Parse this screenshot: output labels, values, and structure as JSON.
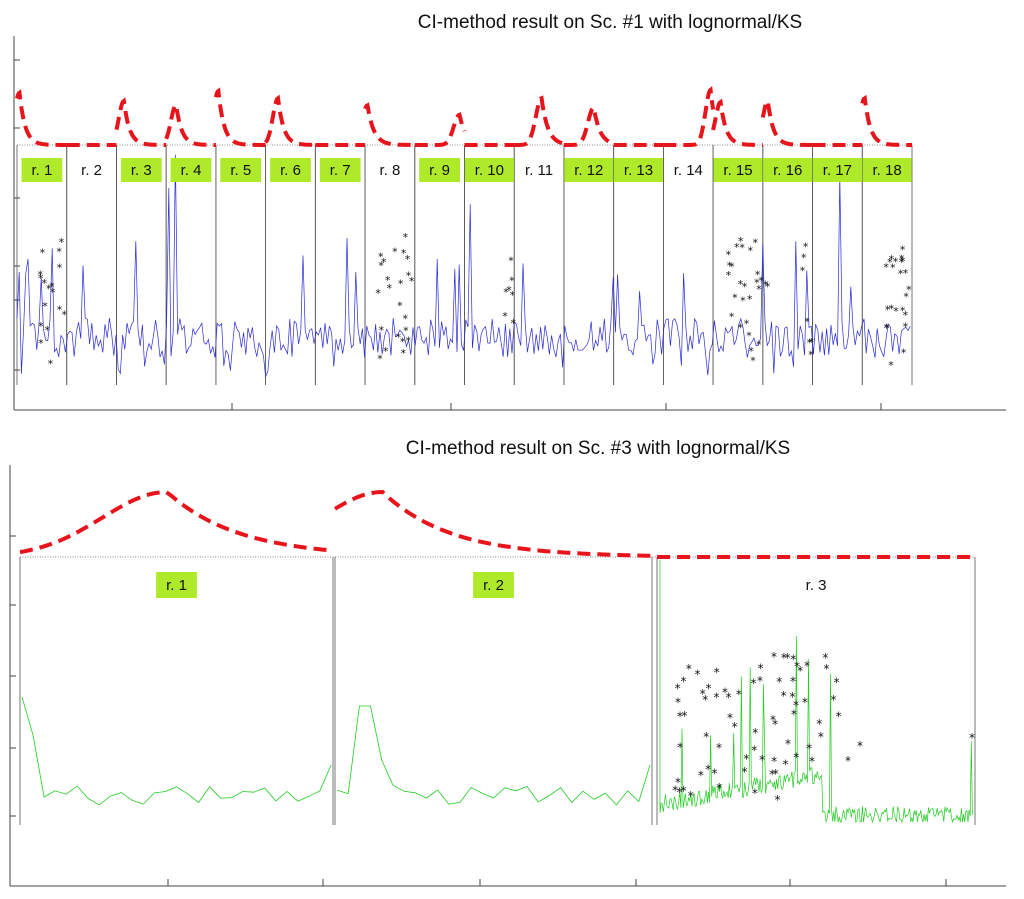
{
  "chart_data": [
    {
      "type": "line",
      "title": "CI-method result on Sc. #1 with lognormal/KS",
      "xlabel": "",
      "ylabel": "",
      "grid": false,
      "n_regions": 18,
      "regions": [
        {
          "label": "r. 1",
          "highlighted": true,
          "peak_pos": 0.05,
          "peak_height": 0.95,
          "peak_width": 0.16
        },
        {
          "label": "r. 2",
          "highlighted": false,
          "peak_pos": null,
          "peak_height": 0,
          "peak_width": 0
        },
        {
          "label": "r. 3",
          "highlighted": true,
          "peak_pos": 0.15,
          "peak_height": 0.8,
          "peak_width": 0.16
        },
        {
          "label": "r. 4",
          "highlighted": true,
          "peak_pos": 0.2,
          "peak_height": 0.73,
          "peak_width": 0.16
        },
        {
          "label": "r. 5",
          "highlighted": true,
          "peak_pos": 0.05,
          "peak_height": 0.98,
          "peak_width": 0.16
        },
        {
          "label": "r. 6",
          "highlighted": true,
          "peak_pos": 0.25,
          "peak_height": 0.85,
          "peak_width": 0.16
        },
        {
          "label": "r. 7",
          "highlighted": true,
          "peak_pos": null,
          "peak_height": 0,
          "peak_width": 0
        },
        {
          "label": "r. 8",
          "highlighted": false,
          "peak_pos": 0.05,
          "peak_height": 0.72,
          "peak_width": 0.18
        },
        {
          "label": "r. 9",
          "highlighted": true,
          "peak_pos": 0.9,
          "peak_height": 0.55,
          "peak_width": 0.18
        },
        {
          "label": "r. 10",
          "highlighted": true,
          "peak_pos": null,
          "peak_height": 0,
          "peak_width": 0
        },
        {
          "label": "r. 11",
          "highlighted": false,
          "peak_pos": 0.55,
          "peak_height": 0.85,
          "peak_width": 0.18
        },
        {
          "label": "r. 12",
          "highlighted": true,
          "peak_pos": 0.6,
          "peak_height": 0.68,
          "peak_width": 0.18
        },
        {
          "label": "r. 13",
          "highlighted": true,
          "peak_pos": null,
          "peak_height": 0,
          "peak_width": 0
        },
        {
          "label": "r. 14",
          "highlighted": false,
          "peak_pos": 0.95,
          "peak_height": 1.0,
          "peak_width": 0.16
        },
        {
          "label": "r. 15",
          "highlighted": true,
          "peak_pos": 0.15,
          "peak_height": 0.78,
          "peak_width": 0.16
        },
        {
          "label": "r. 16",
          "highlighted": true,
          "peak_pos": 0.1,
          "peak_height": 0.8,
          "peak_width": 0.16
        },
        {
          "label": "r. 17",
          "highlighted": true,
          "peak_pos": null,
          "peak_height": 0,
          "peak_width": 0
        },
        {
          "label": "r. 18",
          "highlighted": true,
          "peak_pos": 0.05,
          "peak_height": 0.85,
          "peak_width": 0.16
        }
      ],
      "colors": {
        "signal": "#2b2bd8",
        "pdf": "#e8141b",
        "highlight": "#aeea2a",
        "marker": "#111111",
        "boundary": "#555555"
      }
    },
    {
      "type": "line",
      "title": "CI-method result on Sc. #3 with lognormal/KS",
      "xlabel": "",
      "ylabel": "",
      "grid": false,
      "n_regions": 3,
      "regions": [
        {
          "label": "r. 1",
          "highlighted": true,
          "peak_pos": 0.47,
          "peak_height": 1.0,
          "peak_width": 0.32
        },
        {
          "label": "r. 2",
          "highlighted": true,
          "peak_pos": 0.15,
          "peak_height": 1.0,
          "peak_width": 0.3
        },
        {
          "label": "r. 3",
          "highlighted": false,
          "peak_pos": null,
          "peak_height": 0,
          "peak_width": 0
        }
      ],
      "colors": {
        "signal": "#22cc22",
        "pdf": "#e8141b",
        "highlight": "#aeea2a",
        "marker": "#111111",
        "boundary": "#555555"
      }
    }
  ]
}
